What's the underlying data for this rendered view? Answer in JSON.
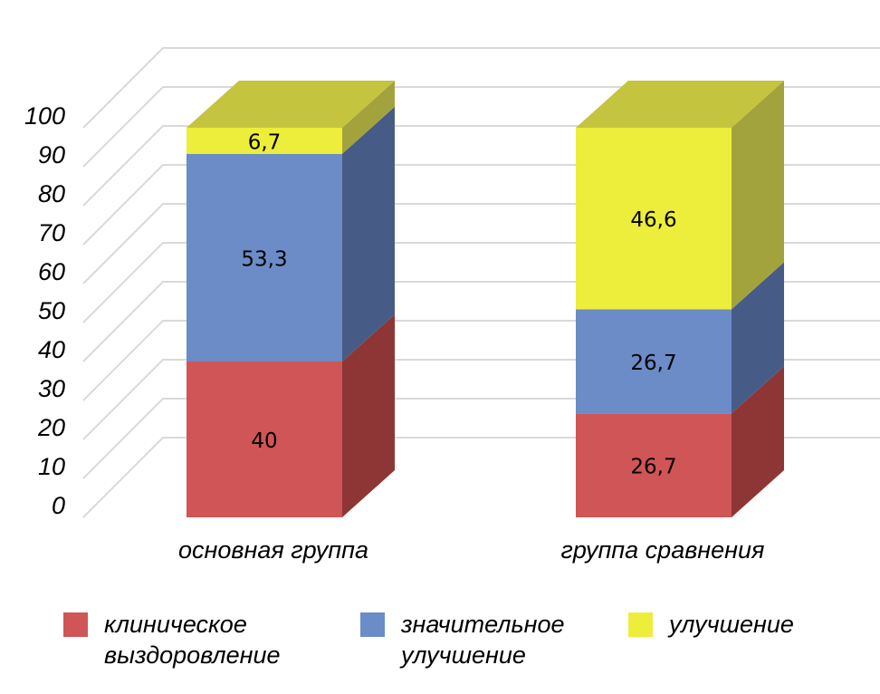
{
  "chart_data": {
    "type": "bar",
    "stacked": true,
    "three_d": true,
    "categories": [
      "основная группа",
      "группа сравнения"
    ],
    "series": [
      {
        "name": "клиническое выздоровление",
        "values": [
          40,
          26.7
        ],
        "labels": [
          "40",
          "26,7"
        ],
        "color": "#d05556",
        "side_color": "#8e3535",
        "top_color": "#b04748"
      },
      {
        "name": "значительное улучшение",
        "values": [
          53.3,
          26.7
        ],
        "labels": [
          "53,3",
          "26,7"
        ],
        "color": "#6b8cc7",
        "side_color": "#465c87",
        "top_color": "#5a78ad"
      },
      {
        "name": "улучшение",
        "values": [
          6.7,
          46.6
        ],
        "labels": [
          "6,7",
          "46,6"
        ],
        "color": "#eded3b",
        "side_color": "#a2a33c",
        "top_color": "#c4c43f"
      }
    ],
    "y_ticks": [
      "0",
      "10",
      "20",
      "30",
      "40",
      "50",
      "60",
      "70",
      "80",
      "90",
      "100"
    ],
    "ylim": [
      0,
      100
    ],
    "grid": true,
    "legend_position": "bottom",
    "title": "",
    "xlabel": "",
    "ylabel": ""
  },
  "legend": [
    {
      "label": "клиническое\nвыздоровление",
      "color": "#d05556"
    },
    {
      "label": "значительное\nулучшение",
      "color": "#6b8cc7"
    },
    {
      "label": "улучшение",
      "color": "#eded3b"
    }
  ]
}
